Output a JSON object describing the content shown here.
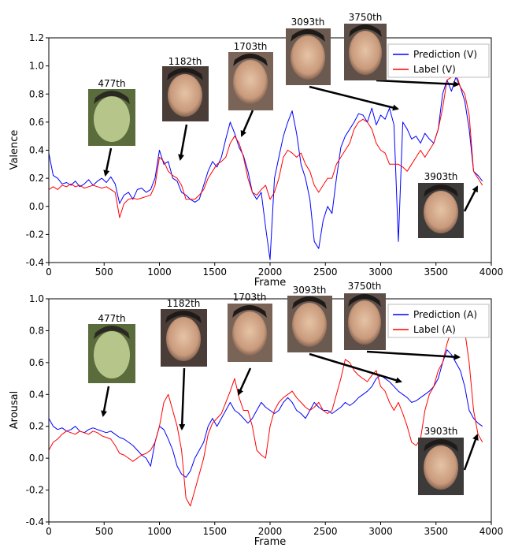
{
  "chart_data": [
    {
      "type": "line",
      "xlabel": "Frame",
      "ylabel": "Valence",
      "xlim": [
        0,
        4000
      ],
      "ylim": [
        -0.4,
        1.2
      ],
      "xticks": [
        0,
        500,
        1000,
        1500,
        2000,
        2500,
        3000,
        3500,
        4000
      ],
      "yticks": [
        -0.4,
        -0.2,
        0.0,
        0.2,
        0.4,
        0.6,
        0.8,
        1.0,
        1.2
      ],
      "grid": false,
      "legend_position": "top-right",
      "series": [
        {
          "name": "Prediction (V)",
          "color": "#0000ff",
          "x": [
            0,
            40,
            80,
            120,
            160,
            200,
            240,
            280,
            320,
            360,
            400,
            440,
            480,
            520,
            560,
            600,
            640,
            680,
            720,
            760,
            800,
            840,
            880,
            920,
            960,
            1000,
            1040,
            1080,
            1120,
            1160,
            1200,
            1240,
            1280,
            1320,
            1360,
            1400,
            1440,
            1480,
            1520,
            1560,
            1600,
            1640,
            1680,
            1720,
            1760,
            1800,
            1840,
            1880,
            1920,
            1960,
            2000,
            2040,
            2080,
            2120,
            2160,
            2200,
            2240,
            2280,
            2320,
            2360,
            2400,
            2440,
            2480,
            2520,
            2560,
            2600,
            2640,
            2680,
            2720,
            2760,
            2800,
            2840,
            2880,
            2920,
            2960,
            3000,
            3040,
            3080,
            3120,
            3160,
            3200,
            3240,
            3280,
            3320,
            3360,
            3400,
            3440,
            3480,
            3520,
            3560,
            3600,
            3640,
            3680,
            3720,
            3760,
            3800,
            3840,
            3880,
            3920
          ],
          "y": [
            0.38,
            0.22,
            0.2,
            0.16,
            0.17,
            0.15,
            0.18,
            0.14,
            0.16,
            0.19,
            0.15,
            0.18,
            0.2,
            0.17,
            0.21,
            0.16,
            0.02,
            0.08,
            0.1,
            0.05,
            0.12,
            0.13,
            0.1,
            0.12,
            0.2,
            0.4,
            0.3,
            0.32,
            0.2,
            0.18,
            0.1,
            0.08,
            0.05,
            0.03,
            0.05,
            0.15,
            0.25,
            0.32,
            0.28,
            0.35,
            0.48,
            0.6,
            0.52,
            0.42,
            0.36,
            0.25,
            0.1,
            0.05,
            0.1,
            -0.15,
            -0.38,
            0.2,
            0.35,
            0.5,
            0.6,
            0.68,
            0.52,
            0.3,
            0.2,
            0.05,
            -0.25,
            -0.3,
            -0.1,
            0.0,
            -0.05,
            0.2,
            0.42,
            0.5,
            0.55,
            0.6,
            0.66,
            0.65,
            0.6,
            0.7,
            0.58,
            0.65,
            0.62,
            0.7,
            0.58,
            -0.25,
            0.6,
            0.55,
            0.48,
            0.5,
            0.45,
            0.52,
            0.48,
            0.45,
            0.55,
            0.8,
            0.9,
            0.82,
            0.92,
            0.85,
            0.75,
            0.55,
            0.25,
            0.22,
            0.18
          ]
        },
        {
          "name": "Label (V)",
          "color": "#ff0000",
          "x": [
            0,
            40,
            80,
            120,
            160,
            200,
            240,
            280,
            320,
            360,
            400,
            440,
            480,
            520,
            560,
            600,
            640,
            680,
            720,
            760,
            800,
            840,
            880,
            920,
            960,
            1000,
            1040,
            1080,
            1120,
            1160,
            1200,
            1240,
            1280,
            1320,
            1360,
            1400,
            1440,
            1480,
            1520,
            1560,
            1600,
            1640,
            1680,
            1720,
            1760,
            1800,
            1840,
            1880,
            1920,
            1960,
            2000,
            2040,
            2080,
            2120,
            2160,
            2200,
            2240,
            2280,
            2320,
            2360,
            2400,
            2440,
            2480,
            2520,
            2560,
            2600,
            2640,
            2680,
            2720,
            2760,
            2800,
            2840,
            2880,
            2920,
            2960,
            3000,
            3040,
            3080,
            3120,
            3160,
            3200,
            3240,
            3280,
            3320,
            3360,
            3400,
            3440,
            3480,
            3520,
            3560,
            3600,
            3640,
            3680,
            3720,
            3760,
            3800,
            3840,
            3880,
            3920
          ],
          "y": [
            0.12,
            0.14,
            0.12,
            0.15,
            0.14,
            0.16,
            0.14,
            0.15,
            0.13,
            0.14,
            0.15,
            0.14,
            0.13,
            0.14,
            0.12,
            0.1,
            -0.08,
            0.02,
            0.05,
            0.06,
            0.05,
            0.06,
            0.07,
            0.08,
            0.15,
            0.35,
            0.32,
            0.25,
            0.22,
            0.2,
            0.15,
            0.05,
            0.05,
            0.05,
            0.08,
            0.12,
            0.2,
            0.25,
            0.3,
            0.32,
            0.35,
            0.45,
            0.5,
            0.45,
            0.35,
            0.2,
            0.1,
            0.08,
            0.12,
            0.15,
            0.05,
            0.1,
            0.2,
            0.35,
            0.4,
            0.38,
            0.35,
            0.38,
            0.3,
            0.25,
            0.15,
            0.1,
            0.15,
            0.2,
            0.2,
            0.3,
            0.35,
            0.4,
            0.45,
            0.55,
            0.6,
            0.62,
            0.6,
            0.55,
            0.45,
            0.4,
            0.38,
            0.3,
            0.3,
            0.3,
            0.28,
            0.25,
            0.3,
            0.35,
            0.4,
            0.35,
            0.4,
            0.45,
            0.55,
            0.7,
            0.9,
            0.92,
            0.95,
            0.85,
            0.8,
            0.65,
            0.25,
            0.2,
            0.15
          ]
        }
      ],
      "annotations": [
        {
          "label": "477th",
          "frame": 477,
          "value": 0.2
        },
        {
          "label": "1182th",
          "frame": 1182,
          "value": 0.33
        },
        {
          "label": "1703th",
          "frame": 1703,
          "value": 0.46
        },
        {
          "label": "3093th",
          "frame": 3093,
          "value": 0.62
        },
        {
          "label": "3750th",
          "frame": 3750,
          "value": 0.92
        },
        {
          "label": "3903th",
          "frame": 3903,
          "value": 0.14
        }
      ]
    },
    {
      "type": "line",
      "xlabel": "Frame",
      "ylabel": "Arousal",
      "xlim": [
        0,
        4000
      ],
      "ylim": [
        -0.4,
        1.0
      ],
      "xticks": [
        0,
        500,
        1000,
        1500,
        2000,
        2500,
        3000,
        3500,
        4000
      ],
      "yticks": [
        -0.4,
        -0.2,
        0.0,
        0.2,
        0.4,
        0.6,
        0.8,
        1.0
      ],
      "grid": false,
      "legend_position": "top-right",
      "series": [
        {
          "name": "Prediction (A)",
          "color": "#0000ff",
          "x": [
            0,
            40,
            80,
            120,
            160,
            200,
            240,
            280,
            320,
            360,
            400,
            440,
            480,
            520,
            560,
            600,
            640,
            680,
            720,
            760,
            800,
            840,
            880,
            920,
            960,
            1000,
            1040,
            1080,
            1120,
            1160,
            1200,
            1240,
            1280,
            1320,
            1360,
            1400,
            1440,
            1480,
            1520,
            1560,
            1600,
            1640,
            1680,
            1720,
            1760,
            1800,
            1840,
            1880,
            1920,
            1960,
            2000,
            2040,
            2080,
            2120,
            2160,
            2200,
            2240,
            2280,
            2320,
            2360,
            2400,
            2440,
            2480,
            2520,
            2560,
            2600,
            2640,
            2680,
            2720,
            2760,
            2800,
            2840,
            2880,
            2920,
            2960,
            3000,
            3040,
            3080,
            3120,
            3160,
            3200,
            3240,
            3280,
            3320,
            3360,
            3400,
            3440,
            3480,
            3520,
            3560,
            3600,
            3640,
            3680,
            3720,
            3760,
            3800,
            3840,
            3880,
            3920
          ],
          "y": [
            0.25,
            0.2,
            0.18,
            0.19,
            0.17,
            0.18,
            0.2,
            0.17,
            0.16,
            0.18,
            0.19,
            0.18,
            0.17,
            0.16,
            0.17,
            0.15,
            0.13,
            0.12,
            0.1,
            0.08,
            0.05,
            0.02,
            0.0,
            -0.05,
            0.1,
            0.2,
            0.18,
            0.12,
            0.05,
            -0.05,
            -0.1,
            -0.12,
            -0.08,
            0.0,
            0.05,
            0.1,
            0.2,
            0.25,
            0.2,
            0.25,
            0.3,
            0.35,
            0.3,
            0.28,
            0.25,
            0.22,
            0.25,
            0.3,
            0.35,
            0.32,
            0.3,
            0.28,
            0.3,
            0.35,
            0.38,
            0.35,
            0.3,
            0.28,
            0.25,
            0.3,
            0.35,
            0.32,
            0.3,
            0.3,
            0.28,
            0.3,
            0.32,
            0.35,
            0.33,
            0.35,
            0.38,
            0.4,
            0.42,
            0.45,
            0.5,
            0.52,
            0.5,
            0.48,
            0.45,
            0.42,
            0.4,
            0.38,
            0.35,
            0.36,
            0.38,
            0.4,
            0.42,
            0.45,
            0.5,
            0.6,
            0.68,
            0.65,
            0.6,
            0.55,
            0.45,
            0.3,
            0.25,
            0.22,
            0.2
          ]
        },
        {
          "name": "Label (A)",
          "color": "#ff0000",
          "x": [
            0,
            40,
            80,
            120,
            160,
            200,
            240,
            280,
            320,
            360,
            400,
            440,
            480,
            520,
            560,
            600,
            640,
            680,
            720,
            760,
            800,
            840,
            880,
            920,
            960,
            1000,
            1040,
            1080,
            1120,
            1160,
            1200,
            1240,
            1280,
            1320,
            1360,
            1400,
            1440,
            1480,
            1520,
            1560,
            1600,
            1640,
            1680,
            1720,
            1760,
            1800,
            1840,
            1880,
            1920,
            1960,
            2000,
            2040,
            2080,
            2120,
            2160,
            2200,
            2240,
            2280,
            2320,
            2360,
            2400,
            2440,
            2480,
            2520,
            2560,
            2600,
            2640,
            2680,
            2720,
            2760,
            2800,
            2840,
            2880,
            2920,
            2960,
            3000,
            3040,
            3080,
            3120,
            3160,
            3200,
            3240,
            3280,
            3320,
            3360,
            3400,
            3440,
            3480,
            3520,
            3560,
            3600,
            3640,
            3680,
            3720,
            3760,
            3800,
            3840,
            3880,
            3920
          ],
          "y": [
            0.05,
            0.1,
            0.12,
            0.15,
            0.17,
            0.16,
            0.15,
            0.17,
            0.16,
            0.15,
            0.17,
            0.16,
            0.14,
            0.13,
            0.12,
            0.08,
            0.03,
            0.02,
            0.0,
            -0.02,
            0.0,
            0.02,
            0.03,
            0.05,
            0.1,
            0.2,
            0.35,
            0.4,
            0.3,
            0.2,
            0.05,
            -0.25,
            -0.3,
            -0.2,
            -0.1,
            0.0,
            0.15,
            0.22,
            0.25,
            0.28,
            0.35,
            0.42,
            0.5,
            0.38,
            0.3,
            0.3,
            0.2,
            0.05,
            0.02,
            0.0,
            0.2,
            0.3,
            0.35,
            0.38,
            0.4,
            0.42,
            0.38,
            0.35,
            0.32,
            0.3,
            0.32,
            0.35,
            0.3,
            0.28,
            0.3,
            0.4,
            0.5,
            0.62,
            0.6,
            0.55,
            0.52,
            0.5,
            0.48,
            0.52,
            0.55,
            0.45,
            0.42,
            0.35,
            0.3,
            0.35,
            0.28,
            0.2,
            0.1,
            0.08,
            0.12,
            0.3,
            0.4,
            0.45,
            0.55,
            0.6,
            0.72,
            0.8,
            0.85,
            0.9,
            0.8,
            0.6,
            0.3,
            0.15,
            0.1
          ]
        }
      ],
      "annotations": [
        {
          "label": "477th",
          "frame": 477,
          "value": 0.18
        },
        {
          "label": "1182th",
          "frame": 1182,
          "value": 0.15
        },
        {
          "label": "1703th",
          "frame": 1703,
          "value": 0.4
        },
        {
          "label": "3093th",
          "frame": 3093,
          "value": 0.48
        },
        {
          "label": "3750th",
          "frame": 3750,
          "value": 0.62
        },
        {
          "label": "3903th",
          "frame": 3903,
          "value": 0.2
        }
      ]
    }
  ]
}
